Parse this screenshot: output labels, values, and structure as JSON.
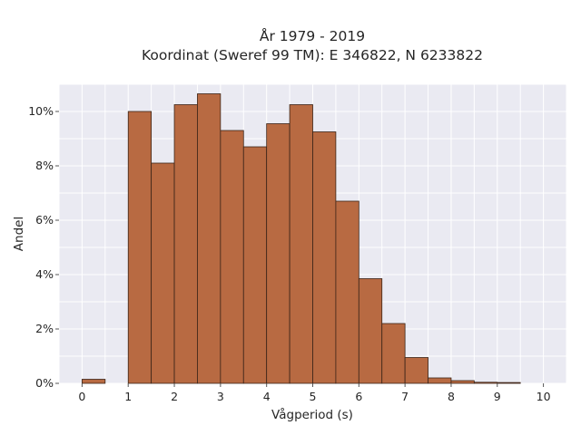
{
  "chart_data": {
    "type": "bar",
    "title_line1": "År 1979 - 2019",
    "title_line2": "Koordinat (Sweref 99 TM): E 346822, N 6233822",
    "xlabel": "Vågperiod (s)",
    "ylabel": "Andel",
    "xlim": [
      -0.5,
      10.5
    ],
    "ylim": [
      0,
      11
    ],
    "bin_width": 0.5,
    "bin_starts": [
      0,
      0.5,
      1,
      1.5,
      2,
      2.5,
      3,
      3.5,
      4,
      4.5,
      5,
      5.5,
      6,
      6.5,
      7,
      7.5,
      8,
      8.5,
      9,
      9.5
    ],
    "values": [
      0.15,
      0,
      10.0,
      8.1,
      10.25,
      10.65,
      9.3,
      8.7,
      9.55,
      10.25,
      9.25,
      6.7,
      3.85,
      2.2,
      0.95,
      0.2,
      0.1,
      0.04,
      0.03,
      0
    ],
    "x_ticks": [
      0,
      1,
      2,
      3,
      4,
      5,
      6,
      7,
      8,
      9,
      10
    ],
    "y_ticks": [
      0,
      2,
      4,
      6,
      8,
      10
    ],
    "x_tick_labels": [
      "0",
      "1",
      "2",
      "3",
      "4",
      "5",
      "6",
      "7",
      "8",
      "9",
      "10"
    ],
    "y_tick_labels": [
      "0%",
      "2%",
      "4%",
      "6%",
      "8%",
      "10%"
    ],
    "bar_color": "#b86a42",
    "bar_edge_color": "#3a2418",
    "plot_background": "#eaeaf2",
    "grid": true
  }
}
